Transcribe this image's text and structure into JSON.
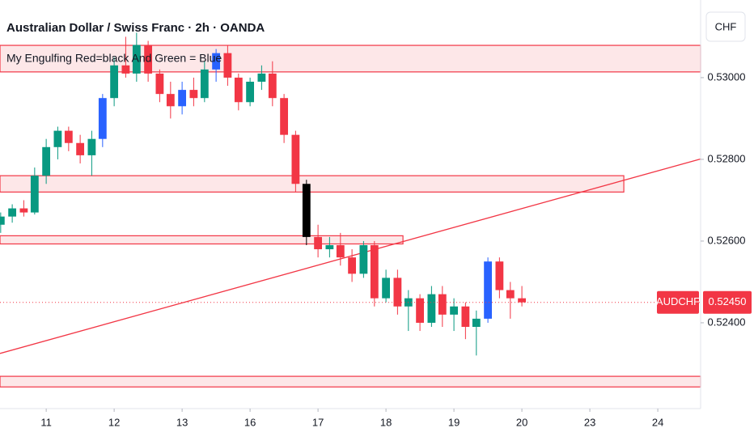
{
  "chart_data": {
    "type": "candlestick",
    "title": "Australian Dollar / Swiss Franc · 2h · OANDA",
    "indicator": "My Engulfing Red=black And Green = Blue",
    "currency": "CHF",
    "symbol": "AUDCHF",
    "last_price": {
      "value": 0.5245,
      "label": "0.52450"
    },
    "x": [
      -0.67,
      -0.5,
      -0.33,
      -0.17,
      0,
      0.17,
      0.33,
      0.5,
      0.67,
      0.83,
      1,
      1.17,
      1.33,
      1.5,
      1.67,
      1.83,
      2,
      2.17,
      2.33,
      2.5,
      2.67,
      2.83,
      3,
      3.17,
      3.33,
      3.5,
      3.67,
      3.83,
      4,
      4.17,
      4.33,
      4.5,
      4.67,
      4.83,
      5,
      5.17,
      5.33,
      5.5,
      5.67,
      5.83,
      6,
      6.17,
      6.33,
      6.5,
      6.67,
      6.83,
      7
    ],
    "open": [
      0.5264,
      0.5266,
      0.5268,
      0.5267,
      0.5276,
      0.5283,
      0.5287,
      0.5284,
      0.5281,
      0.5285,
      0.5295,
      0.5303,
      0.5301,
      0.5308,
      0.5301,
      0.5296,
      0.5293,
      0.5297,
      0.5295,
      0.5302,
      0.5306,
      0.53,
      0.5294,
      0.5299,
      0.5301,
      0.5295,
      0.5286,
      0.5274,
      0.5261,
      0.5258,
      0.5259,
      0.5256,
      0.5252,
      0.5259,
      0.5246,
      0.5251,
      0.5244,
      0.5246,
      0.524,
      0.5247,
      0.5242,
      0.5244,
      0.5239,
      0.5241,
      0.5255,
      0.5248,
      0.5246
    ],
    "high": [
      0.5267,
      0.5269,
      0.527,
      0.5278,
      0.5285,
      0.5288,
      0.5288,
      0.5286,
      0.5287,
      0.5296,
      0.5305,
      0.531,
      0.5311,
      0.5309,
      0.5302,
      0.5299,
      0.5299,
      0.53,
      0.5304,
      0.5307,
      0.5308,
      0.5301,
      0.53,
      0.5303,
      0.5304,
      0.5296,
      0.5287,
      0.5275,
      0.5264,
      0.5261,
      0.5262,
      0.5258,
      0.526,
      0.526,
      0.5253,
      0.5253,
      0.5248,
      0.5247,
      0.5249,
      0.5249,
      0.5246,
      0.5245,
      0.5243,
      0.5256,
      0.5256,
      0.525,
      0.5249
    ],
    "low": [
      0.5262,
      0.52645,
      0.5266,
      0.52665,
      0.5274,
      0.528,
      0.5282,
      0.5279,
      0.5276,
      0.5283,
      0.5293,
      0.53,
      0.5299,
      0.5299,
      0.5294,
      0.529,
      0.5291,
      0.5293,
      0.5294,
      0.5299,
      0.5298,
      0.5292,
      0.5293,
      0.5297,
      0.5293,
      0.5284,
      0.5272,
      0.5259,
      0.5256,
      0.5256,
      0.5254,
      0.525,
      0.5251,
      0.5244,
      0.5245,
      0.5242,
      0.5238,
      0.5238,
      0.5239,
      0.5239,
      0.5238,
      0.5236,
      0.5232,
      0.524,
      0.5246,
      0.5241,
      0.5244
    ],
    "close": [
      0.5266,
      0.5268,
      0.5267,
      0.5276,
      0.5283,
      0.5287,
      0.5284,
      0.5281,
      0.5285,
      0.5295,
      0.5303,
      0.5301,
      0.5308,
      0.5301,
      0.5296,
      0.5293,
      0.5297,
      0.5295,
      0.5302,
      0.5306,
      0.53,
      0.5294,
      0.5299,
      0.5301,
      0.5295,
      0.5286,
      0.5274,
      0.5261,
      0.5258,
      0.5259,
      0.5256,
      0.5252,
      0.5259,
      0.5246,
      0.5251,
      0.5244,
      0.5246,
      0.524,
      0.5247,
      0.5242,
      0.5244,
      0.5239,
      0.5241,
      0.5255,
      0.5248,
      0.5246,
      0.5245
    ],
    "colors": [
      "#089981",
      "#089981",
      "#f23645",
      "#089981",
      "#089981",
      "#089981",
      "#f23645",
      "#f23645",
      "#089981",
      "#2962ff",
      "#089981",
      "#f23645",
      "#089981",
      "#f23645",
      "#f23645",
      "#f23645",
      "#2962ff",
      "#f23645",
      "#089981",
      "#2962ff",
      "#f23645",
      "#f23645",
      "#089981",
      "#089981",
      "#f23645",
      "#f23645",
      "#f23645",
      "#000000",
      "#f23645",
      "#089981",
      "#f23645",
      "#f23645",
      "#089981",
      "#f23645",
      "#089981",
      "#f23645",
      "#089981",
      "#f23645",
      "#089981",
      "#f23645",
      "#089981",
      "#f23645",
      "#089981",
      "#2962ff",
      "#f23645",
      "#f23645",
      "#f23645"
    ],
    "zones": [
      {
        "x": [
          -0.68,
          9.63
        ],
        "low": 0.53014,
        "high": 0.53079
      },
      {
        "x": [
          -0.68,
          8.5
        ],
        "low": 0.5272,
        "high": 0.5276
      },
      {
        "x": [
          -0.68,
          5.25
        ],
        "low": 0.52593,
        "high": 0.52613
      },
      {
        "x": [
          -0.68,
          9.63
        ],
        "low": 0.52243,
        "high": 0.52269
      }
    ],
    "trendline": {
      "x": [
        -0.68,
        9.63
      ],
      "y": [
        0.52325,
        0.52801
      ]
    },
    "zone_color": "#f23645",
    "xlim": [
      -0.68,
      9.63
    ],
    "ylim": [
      0.5219,
      0.5319
    ],
    "yticks": [
      {
        "value": 0.524,
        "label": "0.52400"
      },
      {
        "value": 0.526,
        "label": "0.52600"
      },
      {
        "value": 0.528,
        "label": "0.52800"
      },
      {
        "value": 0.53,
        "label": "0.53000"
      }
    ],
    "xticks": [
      {
        "value": 0,
        "label": "11"
      },
      {
        "value": 1,
        "label": "12"
      },
      {
        "value": 2,
        "label": "13"
      },
      {
        "value": 3,
        "label": "16"
      },
      {
        "value": 4,
        "label": "17"
      },
      {
        "value": 5,
        "label": "18"
      },
      {
        "value": 6,
        "label": "19"
      },
      {
        "value": 7,
        "label": "20"
      },
      {
        "value": 8,
        "label": "23"
      },
      {
        "value": 9,
        "label": "24"
      }
    ]
  }
}
